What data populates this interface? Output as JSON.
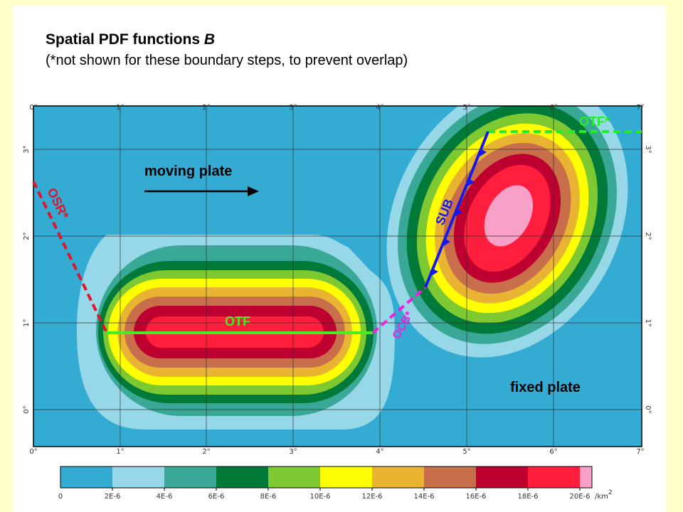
{
  "title_main": "Spatial  PDF  functions",
  "title_var": "B",
  "subtitle": "(*not shown for these boundary steps, to prevent overlap)",
  "map": {
    "x_ticks": [
      "0°",
      "1°",
      "2°",
      "3°",
      "4°",
      "5°",
      "6°",
      "7°"
    ],
    "y_ticks": [
      "0°",
      "1°",
      "2°",
      "3°"
    ],
    "moving_plate": "moving  plate",
    "fixed_plate": "fixed  plate",
    "boundaries": {
      "osr": "OSR*",
      "otf": "OTF",
      "otf_star": "OTF*",
      "sub": "SUB",
      "ocb": "OCB*"
    }
  },
  "colorbar": {
    "labels": [
      "0",
      "2E-6",
      "4E-6",
      "6E-6",
      "8E-6",
      "10E-6",
      "12E-6",
      "14E-6",
      "16E-6",
      "18E-6",
      "20E-6"
    ],
    "unit": "/km",
    "unit_exp": "2",
    "colors": [
      "#33abd3",
      "#96d8e8",
      "#3aa896",
      "#007a38",
      "#7ec832",
      "#ffff00",
      "#e8b432",
      "#c86e4a",
      "#be0030",
      "#ff1e3c",
      "#f8a0c8"
    ]
  }
}
